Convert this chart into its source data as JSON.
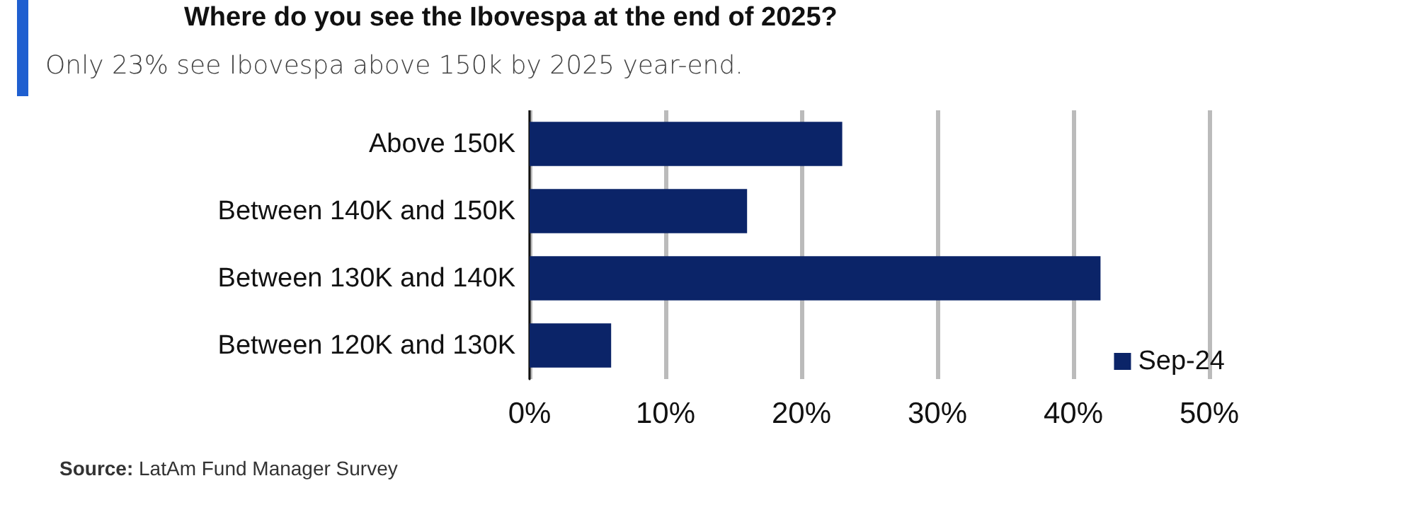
{
  "chart_data": {
    "type": "bar",
    "orientation": "horizontal",
    "title": "Where do you see the Ibovespa at the end of 2025?",
    "subtitle": "Only 23% see Ibovespa above 150k by 2025 year-end.",
    "categories": [
      "Above 150K",
      "Between 140K and 150K",
      "Between 130K and 140K",
      "Between 120K and 130K"
    ],
    "series": [
      {
        "name": "Sep-24",
        "color": "#0b2468",
        "values": [
          23,
          16,
          42,
          6
        ]
      }
    ],
    "xlim": [
      0,
      50
    ],
    "xticks": [
      {
        "value": 0,
        "label": "0%"
      },
      {
        "value": 10,
        "label": "10%"
      },
      {
        "value": 20,
        "label": "20%"
      },
      {
        "value": 30,
        "label": "30%"
      },
      {
        "value": 40,
        "label": "40%"
      },
      {
        "value": 50,
        "label": "50%"
      }
    ],
    "grid": "x",
    "legend": "bottom right",
    "annotations": [
      "Source: LatAm Fund Manager Survey"
    ]
  }
}
